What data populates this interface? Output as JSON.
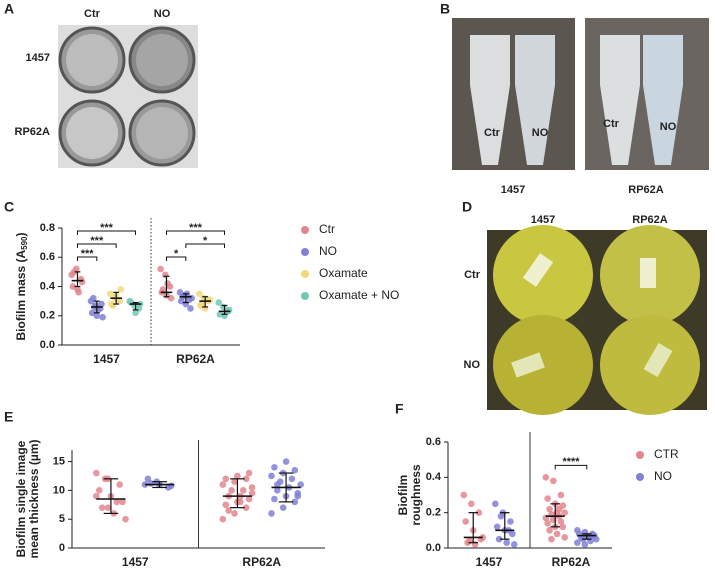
{
  "panels": [
    "A",
    "B",
    "C",
    "D",
    "E",
    "F"
  ],
  "panel_a": {
    "columns": [
      "Ctr",
      "NO"
    ],
    "rows": [
      "1457",
      "RP62A"
    ]
  },
  "panel_b": {
    "tube_labels": [
      "Ctr",
      "NO",
      "Ctr",
      "NO"
    ],
    "strains": [
      "1457",
      "RP62A"
    ]
  },
  "panel_d": {
    "columns": [
      "1457",
      "RP62A"
    ],
    "rows": [
      "Ctr",
      "NO"
    ]
  },
  "chart_data": [
    {
      "type": "dot",
      "ylabel": "Biofilm mass (A",
      "ylabel_sub": "590",
      "ylabel_end": ")",
      "categories": [
        "1457",
        "RP62A"
      ],
      "divider": "dotted",
      "legend": "right",
      "ylim": [
        0,
        0.8
      ],
      "yticks": [
        {
          "value": 0,
          "label": "0.0"
        },
        0.2,
        0.4,
        0.6,
        0.8
      ],
      "series": [
        {
          "name": "Ctr",
          "color": "#e3858d",
          "values": [
            [
              0.48,
              0.52,
              0.45,
              0.4,
              0.38,
              0.43,
              0.5,
              0.36
            ],
            [
              0.52,
              0.48,
              0.4,
              0.36,
              0.34,
              0.32,
              0.38,
              0.42
            ]
          ],
          "median": [
            0.44,
            0.36
          ],
          "err": [
            [
              0.4,
              0.5
            ],
            [
              0.33,
              0.47
            ]
          ]
        },
        {
          "name": "NO",
          "color": "#7f80d6",
          "values": [
            [
              0.3,
              0.27,
              0.25,
              0.22,
              0.2,
              0.28,
              0.32,
              0.24,
              0.19,
              0.26
            ],
            [
              0.36,
              0.34,
              0.31,
              0.3,
              0.28,
              0.25,
              0.33,
              0.35,
              0.32
            ]
          ],
          "median": [
            0.26,
            0.33
          ],
          "err": [
            [
              0.22,
              0.3
            ],
            [
              0.29,
              0.35
            ]
          ]
        },
        {
          "name": "Oxamate",
          "color": "#f3d77a",
          "values": [
            [
              0.35,
              0.32,
              0.3,
              0.28,
              0.34,
              0.38,
              0.27,
              0.31
            ],
            [
              0.35,
              0.32,
              0.3,
              0.27,
              0.25,
              0.31,
              0.28
            ]
          ],
          "median": [
            0.32,
            0.3
          ],
          "err": [
            [
              0.28,
              0.36
            ],
            [
              0.26,
              0.33
            ]
          ]
        },
        {
          "name": "Oxamate + NO",
          "color": "#72c7b4",
          "values": [
            [
              0.3,
              0.27,
              0.25,
              0.29,
              0.22,
              0.28
            ],
            [
              0.29,
              0.26,
              0.23,
              0.21,
              0.2,
              0.24
            ]
          ],
          "median": [
            0.28,
            0.23
          ],
          "err": [
            [
              0.24,
              0.29
            ],
            [
              0.21,
              0.27
            ]
          ]
        }
      ],
      "annotations": [
        {
          "group": "1457",
          "pair": [
            "Ctr",
            "NO"
          ],
          "label": "***"
        },
        {
          "group": "1457",
          "pair": [
            "Ctr",
            "Oxamate"
          ],
          "label": "***"
        },
        {
          "group": "1457",
          "pair": [
            "Ctr",
            "Oxamate + NO"
          ],
          "label": "***"
        },
        {
          "group": "RP62A",
          "pair": [
            "Ctr",
            "NO"
          ],
          "label": "*"
        },
        {
          "group": "RP62A",
          "pair": [
            "NO",
            "Oxamate + NO"
          ],
          "label": "*"
        },
        {
          "group": "RP62A",
          "pair": [
            "Ctr",
            "Oxamate + NO"
          ],
          "label": "***"
        }
      ]
    },
    {
      "type": "dot",
      "ylabel": [
        "Biofilm single image",
        "mean thickness (µm)"
      ],
      "categories": [
        "1457",
        "RP62A"
      ],
      "divider": "solid",
      "ylim": [
        0,
        17
      ],
      "yticks": [
        0,
        5,
        10,
        15
      ],
      "series": [
        {
          "color": "#e3858d",
          "values": [
            [
              13,
              12,
              11,
              10,
              9,
              8,
              7,
              6,
              5,
              12,
              8,
              9,
              7
            ],
            [
              5,
              6,
              7,
              7.5,
              8,
              8.5,
              9,
              9,
              9.5,
              10,
              10,
              11,
              11.5,
              12,
              12,
              12.5,
              13,
              6.5,
              8,
              10.5
            ]
          ],
          "median": [
            8.5,
            9
          ],
          "err": [
            [
              6,
              12
            ],
            [
              7,
              12
            ]
          ]
        },
        {
          "color": "#7f80d6",
          "values": [
            [
              11,
              11.5,
              10.5,
              12,
              11,
              10.8,
              11.2
            ],
            [
              6,
              7,
              8,
              8.5,
              9,
              9.5,
              10,
              10.5,
              11,
              11.5,
              12,
              12.5,
              13,
              13.5,
              14,
              15,
              9,
              11
            ]
          ],
          "median": [
            11,
            10.5
          ],
          "err": [
            [
              10.5,
              11.5
            ],
            [
              8,
              13
            ]
          ]
        }
      ],
      "annotations": []
    },
    {
      "type": "dot",
      "ylabel": [
        "Biofilm",
        "roughness"
      ],
      "categories": [
        "1457",
        "RP62A"
      ],
      "divider": "solid",
      "legend": "right",
      "ylim": [
        0,
        0.6
      ],
      "yticks": [
        {
          "value": 0,
          "label": "0.0"
        },
        0.2,
        0.4,
        0.6
      ],
      "series": [
        {
          "name": "CTR",
          "color": "#e3858d",
          "values": [
            [
              0.3,
              0.25,
              0.2,
              0.15,
              0.1,
              0.05,
              0.03,
              0.02,
              0.06,
              0.04
            ],
            [
              0.4,
              0.38,
              0.3,
              0.28,
              0.25,
              0.24,
              0.22,
              0.2,
              0.2,
              0.19,
              0.18,
              0.17,
              0.16,
              0.15,
              0.14,
              0.12,
              0.12,
              0.1,
              0.08,
              0.06,
              0.05,
              0.22
            ]
          ],
          "median": [
            0.06,
            0.18
          ],
          "err": [
            [
              0.03,
              0.2
            ],
            [
              0.12,
              0.25
            ]
          ]
        },
        {
          "name": "NO",
          "color": "#7f80d6",
          "values": [
            [
              0.25,
              0.2,
              0.15,
              0.12,
              0.1,
              0.08,
              0.05,
              0.03,
              0.02,
              0.18,
              0.1
            ],
            [
              0.1,
              0.09,
              0.08,
              0.08,
              0.07,
              0.07,
              0.06,
              0.06,
              0.05,
              0.05,
              0.04,
              0.03,
              0.02,
              0.07
            ]
          ],
          "median": [
            0.1,
            0.07
          ],
          "err": [
            [
              0.05,
              0.2
            ],
            [
              0.05,
              0.08
            ]
          ]
        }
      ],
      "annotations": [
        {
          "group": "RP62A",
          "pair": [
            "CTR",
            "NO"
          ],
          "label": "****"
        }
      ]
    }
  ]
}
